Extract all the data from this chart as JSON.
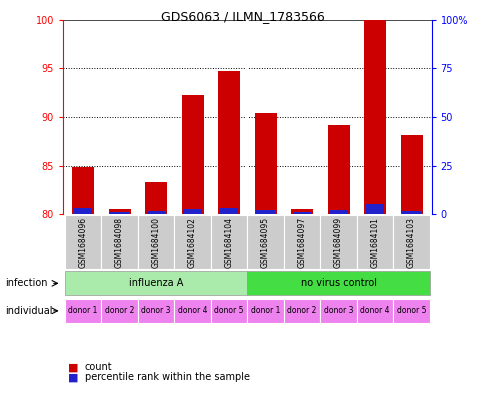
{
  "title": "GDS6063 / ILMN_1783566",
  "samples": [
    "GSM1684096",
    "GSM1684098",
    "GSM1684100",
    "GSM1684102",
    "GSM1684104",
    "GSM1684095",
    "GSM1684097",
    "GSM1684099",
    "GSM1684101",
    "GSM1684103"
  ],
  "red_values": [
    84.8,
    80.5,
    83.3,
    92.3,
    94.7,
    90.4,
    80.5,
    89.2,
    100.0,
    88.1
  ],
  "blue_heights": [
    0.6,
    0.2,
    0.3,
    0.5,
    0.6,
    0.4,
    0.2,
    0.4,
    1.0,
    0.35
  ],
  "ymin": 80,
  "ymax": 100,
  "yticks_left": [
    80,
    85,
    90,
    95,
    100
  ],
  "right_ticks_pos": [
    80,
    85,
    90,
    95,
    100
  ],
  "right_ticks_labels": [
    "0",
    "25",
    "50",
    "75",
    "100%"
  ],
  "individual_labels": [
    "donor 1",
    "donor 2",
    "donor 3",
    "donor 4",
    "donor 5",
    "donor 1",
    "donor 2",
    "donor 3",
    "donor 4",
    "donor 5"
  ],
  "individual_color": "#EE82EE",
  "sample_bg_color": "#CCCCCC",
  "inf_a_color": "#AAEAAA",
  "nvc_color": "#44DD44",
  "red_color": "#CC0000",
  "blue_color": "#2222CC",
  "legend_count": "count",
  "legend_percentile": "percentile rank within the sample",
  "infection_label": "infection",
  "individual_label": "individual"
}
